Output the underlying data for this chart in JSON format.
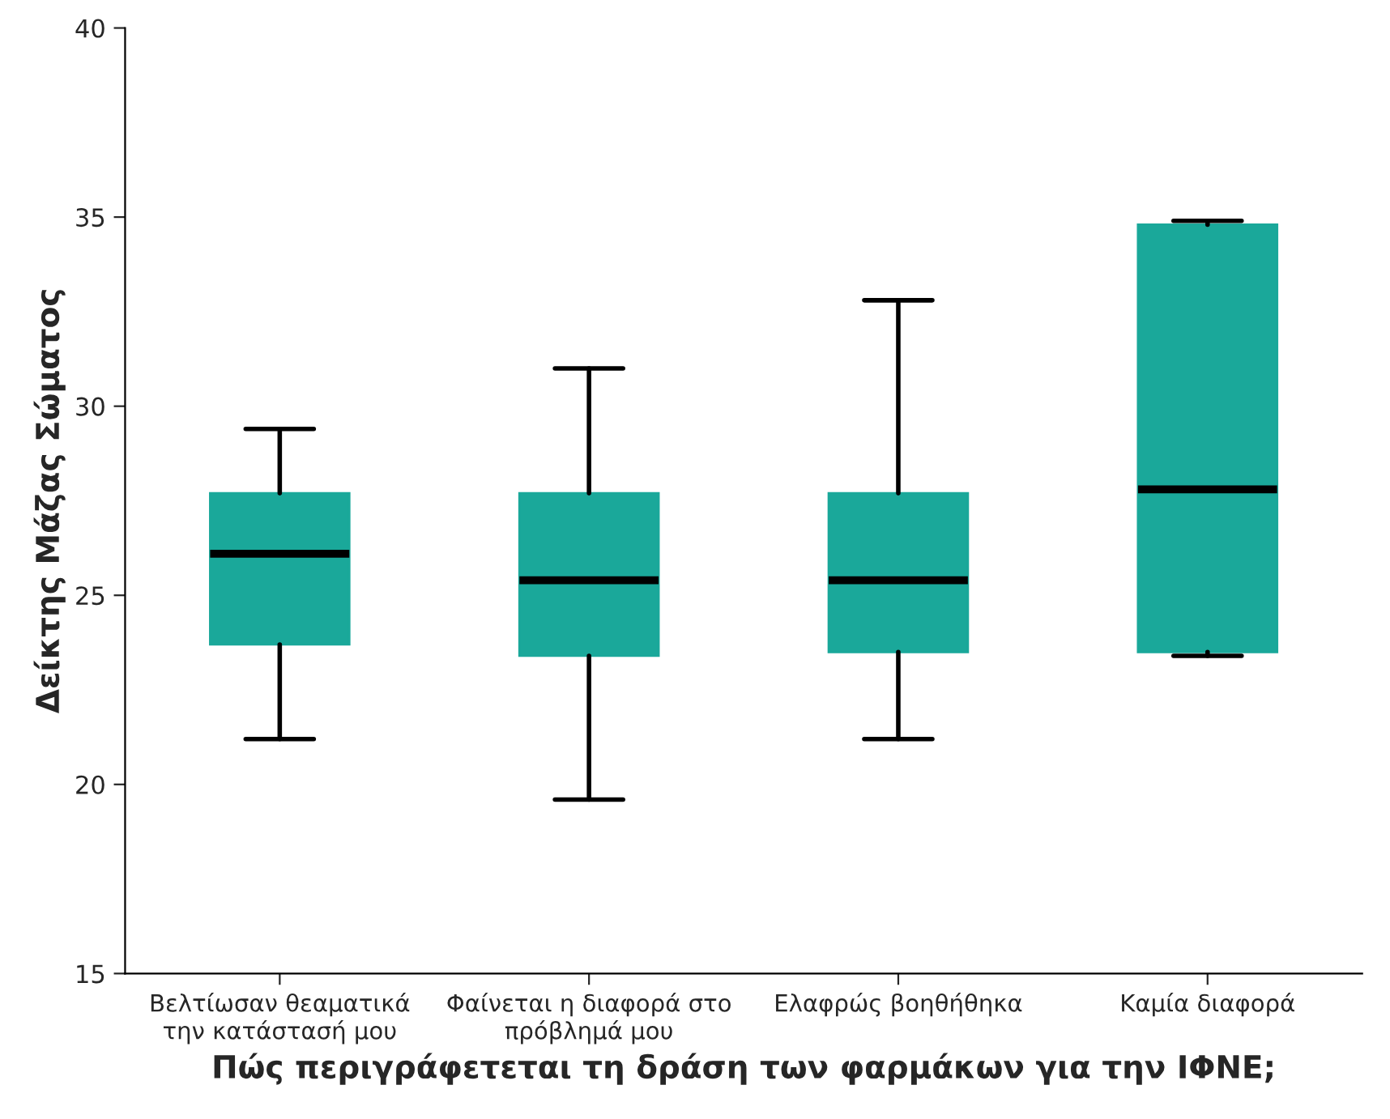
{
  "chart_data": {
    "type": "box",
    "xlabel": "Πώς περιγράφετεται τη δράση των φαρμάκων για την ΙΦΝΕ;",
    "ylabel": "Δείκτης Μάζας Σώματος",
    "categories": [
      "Βελτίωσαν θεαματικά\nτην κατάστασή μου",
      "Φαίνεται η διαφορά στο\nπρόβλημά μου",
      "Ελαφρώς βοηθήθηκα",
      "Καμία διαφορά"
    ],
    "color": "#1aa89a",
    "boxes": [
      {
        "low": 21.2,
        "q1": 23.7,
        "median": 26.1,
        "q3": 27.7,
        "high": 29.4
      },
      {
        "low": 19.6,
        "q1": 23.4,
        "median": 25.4,
        "q3": 27.7,
        "high": 31.0
      },
      {
        "low": 21.2,
        "q1": 23.5,
        "median": 25.4,
        "q3": 27.7,
        "high": 32.8
      },
      {
        "low": 23.4,
        "q1": 23.5,
        "median": 27.8,
        "q3": 34.8,
        "high": 34.9
      }
    ],
    "ylim": [
      15,
      40
    ],
    "yticks": [
      15,
      20,
      25,
      30,
      35,
      40
    ],
    "grid": false,
    "legend": false
  }
}
